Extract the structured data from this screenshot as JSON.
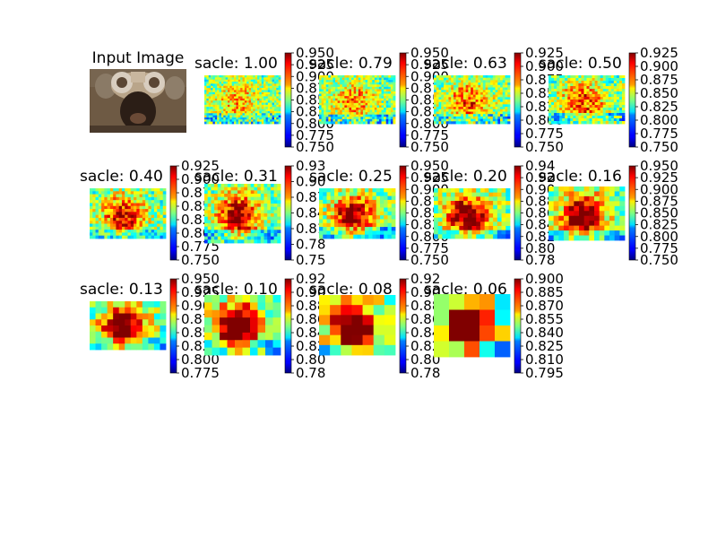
{
  "figure": {
    "input_title": "Input Image"
  },
  "chart_data": [
    {
      "type": "heatmap",
      "title": "sacle: 1.00",
      "colorbar": {
        "range": [
          0.75,
          0.95
        ],
        "ticks": [
          "0.950",
          "0.925",
          "0.900",
          "0.875",
          "0.850",
          "0.825",
          "0.800",
          "0.775",
          "0.750"
        ]
      }
    },
    {
      "type": "heatmap",
      "title": "sacle: 0.79",
      "colorbar": {
        "range": [
          0.75,
          0.95
        ],
        "ticks": [
          "0.950",
          "0.925",
          "0.900",
          "0.875",
          "0.850",
          "0.825",
          "0.800",
          "0.775",
          "0.750"
        ]
      }
    },
    {
      "type": "heatmap",
      "title": "sacle: 0.63",
      "colorbar": {
        "range": [
          0.75,
          0.925
        ],
        "ticks": [
          "0.925",
          "0.900",
          "0.875",
          "0.850",
          "0.825",
          "0.800",
          "0.775",
          "0.750"
        ]
      }
    },
    {
      "type": "heatmap",
      "title": "sacle: 0.50",
      "colorbar": {
        "range": [
          0.75,
          0.925
        ],
        "ticks": [
          "0.925",
          "0.900",
          "0.875",
          "0.850",
          "0.825",
          "0.800",
          "0.775",
          "0.750"
        ]
      }
    },
    {
      "type": "heatmap",
      "title": "sacle: 0.40",
      "colorbar": {
        "range": [
          0.75,
          0.925
        ],
        "ticks": [
          "0.925",
          "0.900",
          "0.875",
          "0.850",
          "0.825",
          "0.800",
          "0.775",
          "0.750"
        ]
      }
    },
    {
      "type": "heatmap",
      "title": "sacle: 0.31",
      "colorbar": {
        "range": [
          0.75,
          0.93
        ],
        "ticks": [
          "0.93",
          "0.90",
          "0.87",
          "0.84",
          "0.81",
          "0.78",
          "0.75"
        ]
      }
    },
    {
      "type": "heatmap",
      "title": "sacle: 0.25",
      "colorbar": {
        "range": [
          0.75,
          0.95
        ],
        "ticks": [
          "0.950",
          "0.925",
          "0.900",
          "0.875",
          "0.850",
          "0.825",
          "0.800",
          "0.775",
          "0.750"
        ]
      }
    },
    {
      "type": "heatmap",
      "title": "sacle: 0.20",
      "colorbar": {
        "range": [
          0.78,
          0.94
        ],
        "ticks": [
          "0.94",
          "0.92",
          "0.90",
          "0.88",
          "0.86",
          "0.84",
          "0.82",
          "0.80",
          "0.78"
        ]
      }
    },
    {
      "type": "heatmap",
      "title": "sacle: 0.16",
      "colorbar": {
        "range": [
          0.75,
          0.95
        ],
        "ticks": [
          "0.950",
          "0.925",
          "0.900",
          "0.875",
          "0.850",
          "0.825",
          "0.800",
          "0.775",
          "0.750"
        ]
      }
    },
    {
      "type": "heatmap",
      "title": "sacle: 0.13",
      "colorbar": {
        "range": [
          0.775,
          0.95
        ],
        "ticks": [
          "0.950",
          "0.925",
          "0.900",
          "0.875",
          "0.850",
          "0.825",
          "0.800",
          "0.775"
        ]
      }
    },
    {
      "type": "heatmap",
      "title": "sacle: 0.10",
      "colorbar": {
        "range": [
          0.78,
          0.92
        ],
        "ticks": [
          "0.92",
          "0.90",
          "0.88",
          "0.86",
          "0.84",
          "0.82",
          "0.80",
          "0.78"
        ]
      }
    },
    {
      "type": "heatmap",
      "title": "sacle: 0.08",
      "colorbar": {
        "range": [
          0.78,
          0.92
        ],
        "ticks": [
          "0.92",
          "0.90",
          "0.88",
          "0.86",
          "0.84",
          "0.82",
          "0.80",
          "0.78"
        ]
      }
    },
    {
      "type": "heatmap",
      "title": "sacle: 0.06",
      "colorbar": {
        "range": [
          0.795,
          0.9
        ],
        "ticks": [
          "0.900",
          "0.885",
          "0.870",
          "0.855",
          "0.840",
          "0.825",
          "0.810",
          "0.795"
        ]
      }
    }
  ]
}
